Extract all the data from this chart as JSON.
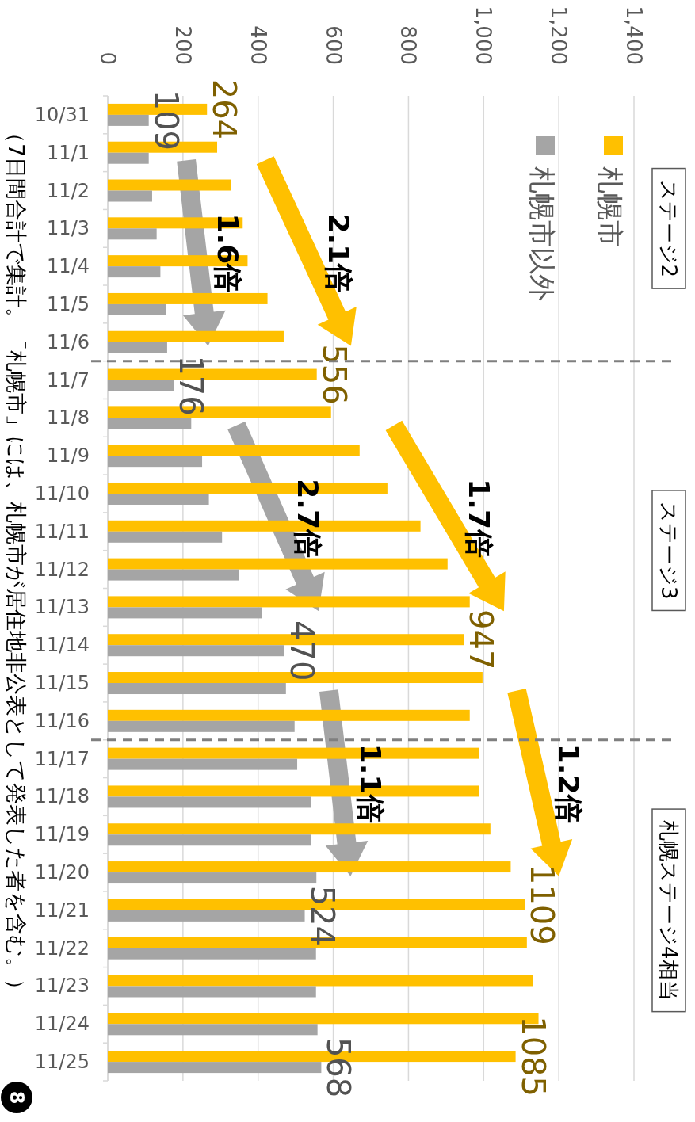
{
  "chart_data": {
    "type": "bar",
    "orientation": "horizontal",
    "categories": [
      "10/31",
      "11/1",
      "11/2",
      "11/3",
      "11/4",
      "11/5",
      "11/6",
      "11/7",
      "11/8",
      "11/9",
      "11/10",
      "11/11",
      "11/12",
      "11/13",
      "11/14",
      "11/15",
      "11/16",
      "11/17",
      "11/18",
      "11/19",
      "11/20",
      "11/21",
      "11/22",
      "11/23",
      "11/24",
      "11/25"
    ],
    "series": [
      {
        "name": "札幌市",
        "color": "#ffc000",
        "values": [
          264,
          291,
          328,
          359,
          372,
          425,
          468,
          556,
          594,
          670,
          744,
          832,
          904,
          963,
          947,
          997,
          963,
          988,
          987,
          1018,
          1072,
          1109,
          1115,
          1131,
          1146,
          1085
        ],
        "value_labels": [
          "264",
          null,
          null,
          null,
          null,
          null,
          null,
          "556",
          null,
          null,
          null,
          null,
          null,
          null,
          "947",
          null,
          null,
          null,
          null,
          null,
          null,
          "1109",
          null,
          null,
          null,
          "1085"
        ]
      },
      {
        "name": "札幌市以外",
        "color": "#a5a5a5",
        "values": [
          109,
          109,
          118,
          130,
          140,
          154,
          158,
          176,
          222,
          251,
          269,
          304,
          348,
          410,
          470,
          474,
          497,
          504,
          541,
          541,
          555,
          524,
          554,
          554,
          558,
          568
        ],
        "value_labels": [
          "109",
          null,
          null,
          null,
          null,
          null,
          null,
          "176",
          null,
          null,
          null,
          null,
          null,
          null,
          "470",
          null,
          null,
          null,
          null,
          null,
          null,
          "524",
          null,
          null,
          null,
          "568"
        ]
      }
    ],
    "xlim": [
      0,
      1400
    ],
    "xticks": [
      0,
      200,
      400,
      600,
      800,
      {
        "value": 1000,
        "label": "1,000"
      },
      {
        "value": 1200,
        "label": "1,200"
      },
      {
        "value": 1400,
        "label": "1,400"
      }
    ],
    "grid": "x",
    "legend": "top right",
    "annotations": [
      "2.1倍",
      "1.7倍",
      "1.2倍",
      "1.6倍",
      "2.7倍",
      "1.1倍",
      "ステージ2",
      "ステージ3",
      "札幌ステージ4相当",
      "（7日間合計で集計。「札幌市」には、札幌市が居住地非公表として発表した者を含む。）",
      "8"
    ]
  }
}
